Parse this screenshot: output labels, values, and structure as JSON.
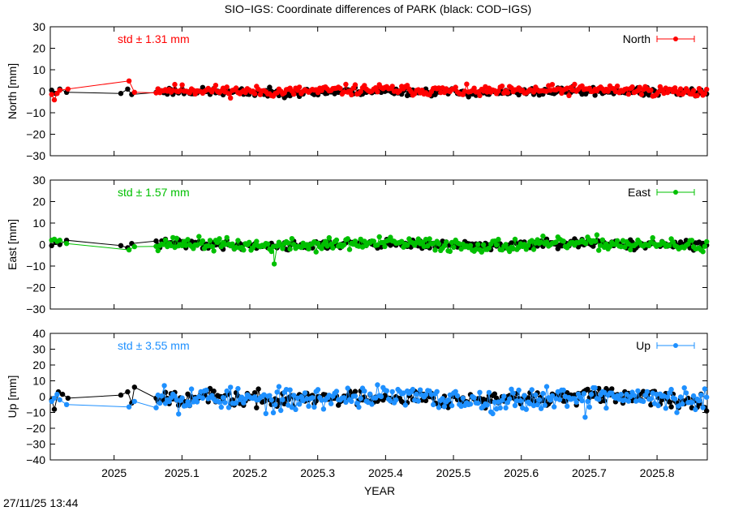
{
  "title": "SIO−IGS: Coordinate differences of PARK (black: COD−IGS)",
  "timestamp": "27/11/25 13:44",
  "chart_data": {
    "type": "scatter",
    "xlabel": "YEAR",
    "xlim": [
      2024.906,
      2025.874
    ],
    "x_ticks": [
      2025.0,
      2025.1,
      2025.2,
      2025.3,
      2025.4,
      2025.5,
      2025.6,
      2025.7,
      2025.8
    ],
    "x_tick_labels": [
      "2025",
      "2025.1",
      "2025.2",
      "2025.3",
      "2025.4",
      "2025.5",
      "2025.6",
      "2025.7",
      "2025.8"
    ],
    "panels": [
      {
        "component": "north",
        "ylabel": "North [mm]",
        "ylim": [
          -30,
          30
        ],
        "y_ticks": [
          -30,
          -20,
          -10,
          0,
          10,
          20,
          30
        ],
        "y_tick_labels": [
          "−30",
          "−20",
          "−10",
          "0",
          "10",
          "20",
          "30"
        ],
        "legend": "North",
        "legend_position": "top-right",
        "std_text": "std ± 1.31 mm",
        "color": "#ff0000",
        "series": [
          {
            "name": "SIO−IGS",
            "color": "#ff0000",
            "amp": 1.2,
            "offset": 0.3,
            "seed": 11,
            "x": [
              2024.908,
              2024.912,
              2024.916,
              2024.92,
              2024.932,
              2025.022,
              2025.03
            ],
            "values": [
              -1.5,
              -4.0,
              -1.0,
              0.5,
              1.0,
              4.8,
              -0.5
            ]
          },
          {
            "name": "COD−IGS",
            "color": "#000000",
            "amp": 0.9,
            "offset": -0.3,
            "seed": 23,
            "x": [
              2024.908,
              2024.914,
              2024.92,
              2024.93,
              2025.01,
              2025.02,
              2025.026
            ],
            "values": [
              0.5,
              -1.0,
              1.0,
              -0.5,
              -1.0,
              1.0,
              -1.5
            ]
          }
        ]
      },
      {
        "component": "east",
        "ylabel": "East [mm]",
        "ylim": [
          -30,
          30
        ],
        "y_ticks": [
          -30,
          -20,
          -10,
          0,
          10,
          20,
          30
        ],
        "y_tick_labels": [
          "−30",
          "−20",
          "−10",
          "0",
          "10",
          "20",
          "30"
        ],
        "legend": "East",
        "legend_position": "top-right",
        "std_text": "std ± 1.57 mm",
        "color": "#00c000",
        "series": [
          {
            "name": "SIO−IGS",
            "color": "#00c000",
            "amp": 1.5,
            "offset": 0.0,
            "seed": 37,
            "x": [
              2024.908,
              2024.912,
              2024.916,
              2024.92,
              2024.93,
              2025.022,
              2025.03,
              2025.236
            ],
            "values": [
              2.0,
              2.5,
              1.5,
              2.0,
              0.5,
              -2.5,
              -1.0,
              -9.0
            ]
          },
          {
            "name": "COD−IGS",
            "color": "#000000",
            "amp": 1.0,
            "offset": 0.0,
            "seed": 41,
            "x": [
              2024.908,
              2024.914,
              2024.92,
              2024.93,
              2025.01,
              2025.02,
              2025.026
            ],
            "values": [
              -0.5,
              1.0,
              0.0,
              2.0,
              -0.5,
              -1.5,
              0.5
            ]
          }
        ]
      },
      {
        "component": "up",
        "ylabel": "Up [mm]",
        "ylim": [
          -40,
          40
        ],
        "y_ticks": [
          -40,
          -30,
          -20,
          -10,
          0,
          10,
          20,
          30,
          40
        ],
        "y_tick_labels": [
          "−40",
          "−30",
          "−20",
          "−10",
          "0",
          "10",
          "20",
          "30",
          "40"
        ],
        "legend": "Up",
        "legend_position": "top-right",
        "std_text": "std ± 3.55 mm",
        "color": "#1e90ff",
        "series": [
          {
            "name": "SIO−IGS",
            "color": "#1e90ff",
            "amp": 3.5,
            "offset": -1.0,
            "seed": 53,
            "x": [
              2024.908,
              2024.912,
              2024.916,
              2024.92,
              2024.93,
              2025.022,
              2025.03,
              2025.074,
              2025.095,
              2025.694
            ],
            "values": [
              -3.0,
              -1.0,
              1.5,
              -2.0,
              -5.0,
              -6.5,
              -3.0,
              7.0,
              -11.0,
              -13.0
            ]
          },
          {
            "name": "COD−IGS",
            "color": "#000000",
            "amp": 2.5,
            "offset": -1.0,
            "seed": 67,
            "x": [
              2024.908,
              2024.912,
              2024.918,
              2024.924,
              2024.932,
              2025.01,
              2025.02,
              2025.026,
              2025.03
            ],
            "values": [
              -2.0,
              -8.0,
              3.0,
              1.5,
              -1.0,
              1.0,
              3.0,
              -4.0,
              6.0
            ]
          }
        ]
      }
    ],
    "dense_range": [
      2025.062,
      2025.874
    ],
    "dense_step": 0.00274
  }
}
